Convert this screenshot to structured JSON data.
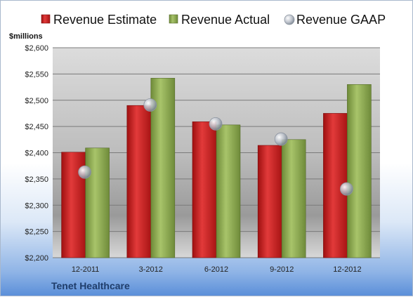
{
  "chart_data": {
    "type": "bar",
    "company": "Tenet Healthcare",
    "unit_label": "$millions",
    "categories": [
      "12-2011",
      "3-2012",
      "6-2012",
      "9-2012",
      "12-2012"
    ],
    "series": [
      {
        "name": "Revenue Estimate",
        "kind": "bar",
        "color": "#cc1f1f",
        "values": [
          2401,
          2490,
          2459,
          2414,
          2475
        ]
      },
      {
        "name": "Revenue Actual",
        "kind": "bar",
        "color": "#8faa52",
        "values": [
          2409,
          2542,
          2453,
          2425,
          2530
        ]
      },
      {
        "name": "Revenue GAAP",
        "kind": "marker",
        "color": "#b8bec8",
        "values": [
          2363,
          2491,
          2455,
          2426,
          2331
        ]
      }
    ],
    "ylim": [
      2200,
      2600
    ],
    "yticks": [
      2200,
      2250,
      2300,
      2350,
      2400,
      2450,
      2500,
      2550,
      2600
    ],
    "ytick_labels": [
      "$2,200",
      "$2,250",
      "$2,300",
      "$2,350",
      "$2,400",
      "$2,450",
      "$2,500",
      "$2,550",
      "$2,600"
    ],
    "grid": true,
    "legend_position": "top"
  }
}
